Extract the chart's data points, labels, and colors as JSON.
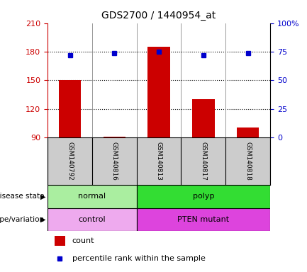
{
  "title": "GDS2700 / 1440954_at",
  "samples": [
    "GSM140792",
    "GSM140816",
    "GSM140813",
    "GSM140817",
    "GSM140818"
  ],
  "bar_values": [
    150,
    91,
    185,
    130,
    100
  ],
  "percentile_values": [
    72,
    74,
    75,
    72,
    74
  ],
  "bar_color": "#cc0000",
  "dot_color": "#0000cc",
  "ylim_left": [
    90,
    210
  ],
  "yticks_left": [
    90,
    120,
    150,
    180,
    210
  ],
  "ylim_right": [
    0,
    100
  ],
  "yticks_right": [
    0,
    25,
    50,
    75,
    100
  ],
  "ytick_right_labels": [
    "0",
    "25",
    "50",
    "75",
    "100%"
  ],
  "gridlines": [
    120,
    150,
    180
  ],
  "disease_state": [
    {
      "label": "normal",
      "color": "#aaeea0",
      "span": [
        0,
        2
      ]
    },
    {
      "label": "polyp",
      "color": "#33dd33",
      "span": [
        2,
        5
      ]
    }
  ],
  "genotype": [
    {
      "label": "control",
      "color": "#eeaaee",
      "span": [
        0,
        2
      ]
    },
    {
      "label": "PTEN mutant",
      "color": "#dd44dd",
      "span": [
        2,
        5
      ]
    }
  ],
  "sample_bg_color": "#cccccc",
  "legend_count_color": "#cc0000",
  "legend_pct_color": "#0000cc",
  "background_color": "#ffffff"
}
